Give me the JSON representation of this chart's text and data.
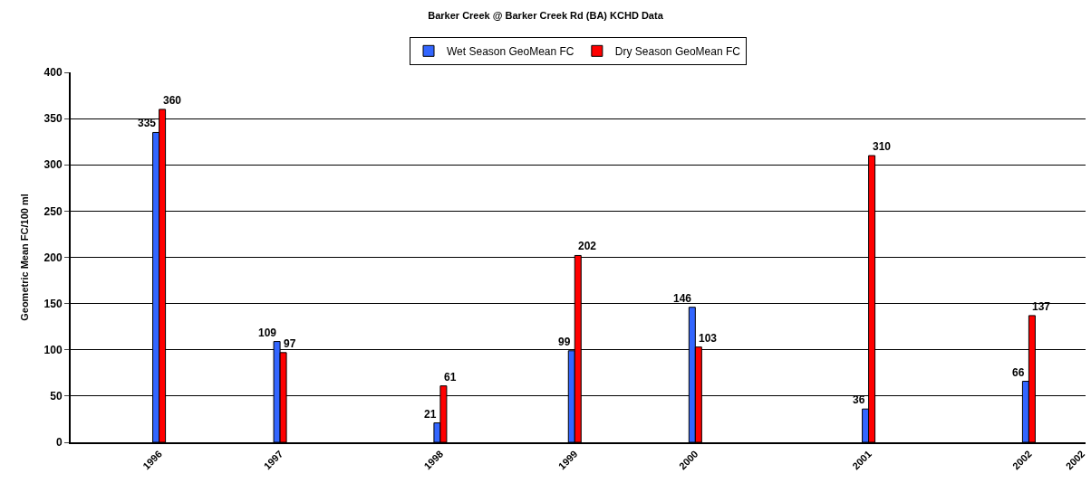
{
  "chart_data": {
    "type": "bar",
    "title": "Barker Creek @ Barker Creek Rd (BA) KCHD Data",
    "ylabel": "Geometric Mean FC/100 ml",
    "x": [
      "1996-06-01",
      "1997-04-02",
      "1998-05-11",
      "1999-04-15",
      "2000-02-13",
      "2001-04-25",
      "2002-06-03"
    ],
    "series": [
      {
        "name": "Wet Season GeoMean FC",
        "color": "#3366ff",
        "values": [
          335,
          109,
          21,
          99,
          146,
          36,
          66
        ]
      },
      {
        "name": "Dry Season GeoMean FC",
        "color": "#ff0000",
        "values": [
          360,
          97,
          61,
          202,
          103,
          310,
          137
        ]
      }
    ],
    "xlim": [
      "1995-10-22",
      "2002-10-24"
    ],
    "xticks": [
      {
        "value": "1996-06-01",
        "label": "1996"
      },
      {
        "value": "1997-04-02",
        "label": "1997"
      },
      {
        "value": "1998-05-11",
        "label": "1998"
      },
      {
        "value": "1999-04-15",
        "label": "1999"
      },
      {
        "value": "2000-02-13",
        "label": "2000"
      },
      {
        "value": "2001-04-25",
        "label": "2001"
      },
      {
        "value": "2002-06-03",
        "label": "2002"
      },
      {
        "value": "2002-10-15",
        "label": "2002"
      }
    ],
    "ylim": [
      0,
      400
    ],
    "yticks": [
      0,
      50,
      100,
      150,
      200,
      250,
      300,
      350,
      400
    ],
    "data_labels": true,
    "grid": "y",
    "legend": "top"
  }
}
